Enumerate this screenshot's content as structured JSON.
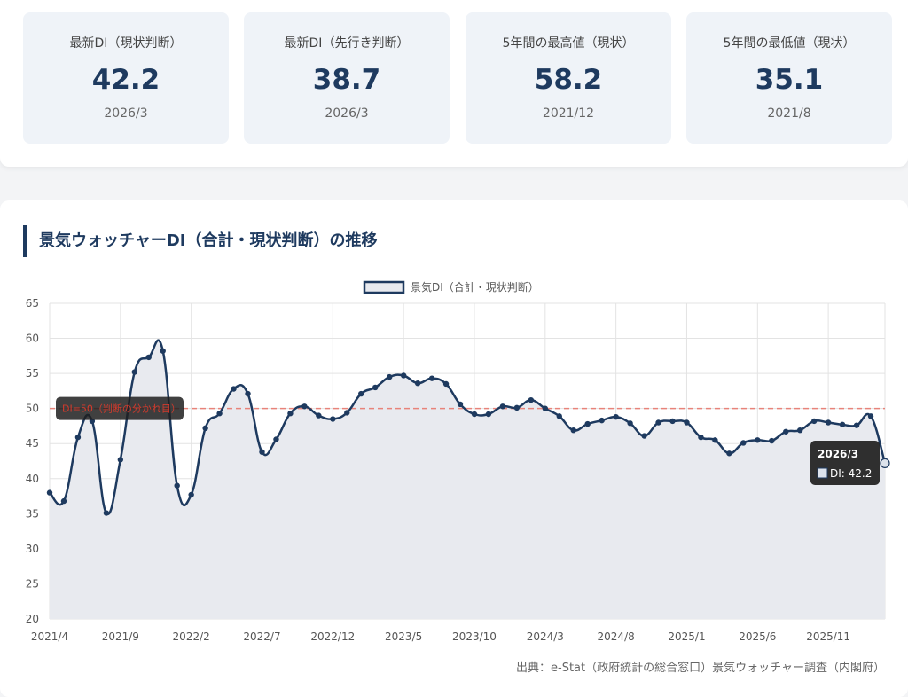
{
  "stats": [
    {
      "label": "最新DI（現状判断）",
      "value": "42.2",
      "date": "2026/3"
    },
    {
      "label": "最新DI（先行き判断）",
      "value": "38.7",
      "date": "2026/3"
    },
    {
      "label": "5年間の最高値（現状）",
      "value": "58.2",
      "date": "2021/12"
    },
    {
      "label": "5年間の最低値（現状）",
      "value": "35.1",
      "date": "2021/8"
    }
  ],
  "chart_title": "景気ウォッチャーDI（合計・現状判断）の推移",
  "source": "出典：e-Stat（政府統計の総合窓口）景気ウォッチャー調査（内閣府）",
  "colors": {
    "line": "#1e3a5f",
    "fill": "#e8eaef",
    "threshold": "#e8837a"
  },
  "tooltip": {
    "title": "2026/3",
    "text": "DI: 42.2"
  },
  "chart_data": {
    "type": "line",
    "legend": "景気DI（合計・現状判断）",
    "legend_position": "top",
    "ylim": [
      20,
      65
    ],
    "yticks": [
      20,
      25,
      30,
      35,
      40,
      45,
      50,
      55,
      60,
      65
    ],
    "xtick_labels": [
      "2021/4",
      "2021/9",
      "2022/2",
      "2022/7",
      "2022/12",
      "2023/5",
      "2023/10",
      "2024/3",
      "2024/8",
      "2025/1",
      "2025/6",
      "2025/11"
    ],
    "threshold": {
      "value": 50,
      "label": "DI=50（判断の分かれ目）"
    },
    "start": "2021/4",
    "values": [
      38.0,
      36.8,
      45.9,
      48.2,
      35.1,
      42.7,
      55.2,
      57.3,
      58.2,
      39.0,
      37.7,
      47.2,
      49.3,
      52.8,
      52.1,
      43.8,
      45.6,
      49.3,
      50.3,
      49.0,
      48.5,
      49.4,
      52.1,
      53.0,
      54.5,
      54.7,
      53.6,
      54.3,
      53.5,
      50.6,
      49.2,
      49.2,
      50.3,
      50.1,
      51.2,
      50.0,
      48.9,
      46.9,
      47.8,
      48.3,
      48.8,
      47.9,
      46.1,
      48.0,
      48.2,
      48.0,
      45.9,
      45.5,
      43.6,
      45.1,
      45.5,
      45.4,
      46.7,
      46.9,
      48.2,
      48.0,
      47.7,
      47.6,
      48.9,
      42.2
    ]
  }
}
